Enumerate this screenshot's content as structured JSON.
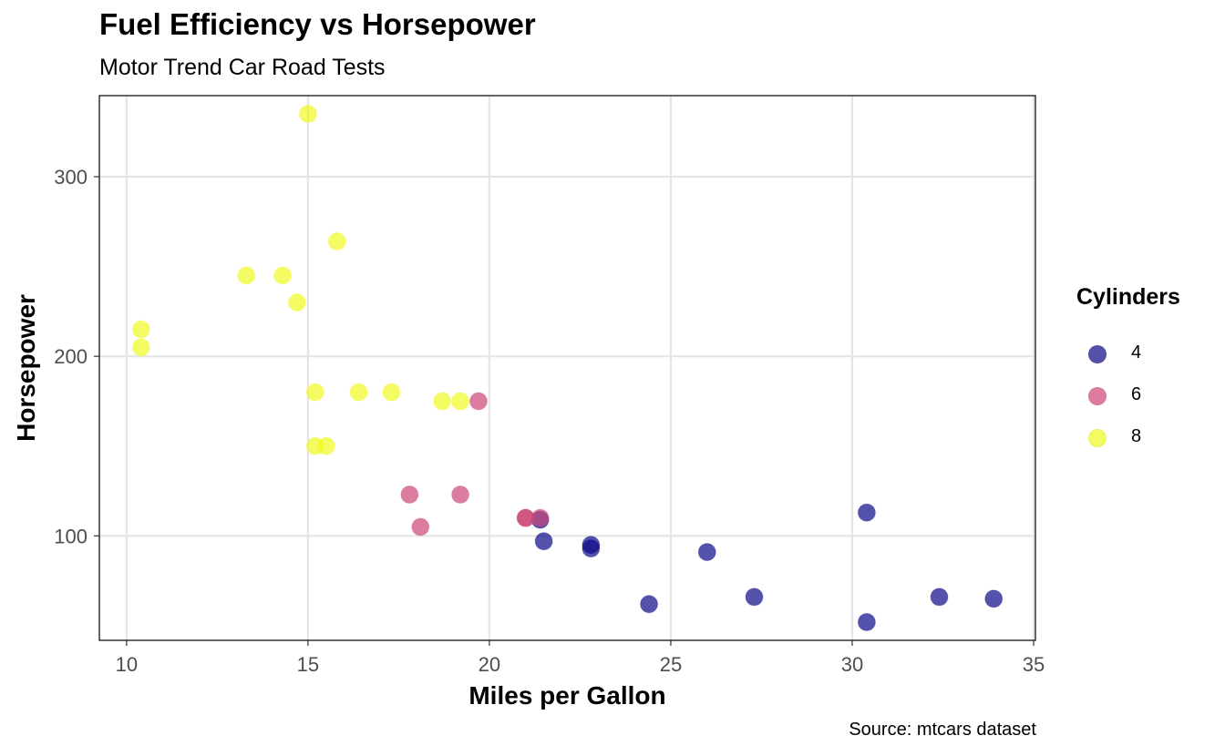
{
  "chart_data": {
    "type": "scatter",
    "title": "Fuel Efficiency vs Horsepower",
    "subtitle": "Motor Trend Car Road Tests",
    "caption": "Source: mtcars dataset",
    "xlabel": "Miles per Gallon",
    "ylabel": "Horsepower",
    "xlim": [
      9.25,
      35.05
    ],
    "ylim": [
      41.85,
      345.15
    ],
    "xticks": [
      10,
      15,
      20,
      25,
      30,
      35
    ],
    "yticks": [
      100,
      200,
      300
    ],
    "grid": true,
    "legend": {
      "title": "Cylinders",
      "position": "right"
    },
    "series": [
      {
        "name": "4",
        "color": "#0D0887",
        "points": [
          [
            22.8,
            93
          ],
          [
            24.4,
            62
          ],
          [
            22.8,
            95
          ],
          [
            32.4,
            66
          ],
          [
            30.4,
            52
          ],
          [
            33.9,
            65
          ],
          [
            21.5,
            97
          ],
          [
            27.3,
            66
          ],
          [
            26.0,
            91
          ],
          [
            30.4,
            113
          ],
          [
            21.4,
            109
          ]
        ]
      },
      {
        "name": "6",
        "color": "#CC4678",
        "points": [
          [
            21.0,
            110
          ],
          [
            21.0,
            110
          ],
          [
            21.4,
            110
          ],
          [
            18.1,
            105
          ],
          [
            19.2,
            123
          ],
          [
            17.8,
            123
          ],
          [
            19.7,
            175
          ]
        ]
      },
      {
        "name": "8",
        "color": "#F0F921",
        "points": [
          [
            18.7,
            175
          ],
          [
            14.3,
            245
          ],
          [
            16.4,
            180
          ],
          [
            17.3,
            180
          ],
          [
            15.2,
            180
          ],
          [
            10.4,
            205
          ],
          [
            10.4,
            215
          ],
          [
            14.7,
            230
          ],
          [
            15.5,
            150
          ],
          [
            15.2,
            150
          ],
          [
            13.3,
            245
          ],
          [
            19.2,
            175
          ],
          [
            15.8,
            264
          ],
          [
            15.0,
            335
          ]
        ]
      }
    ]
  }
}
